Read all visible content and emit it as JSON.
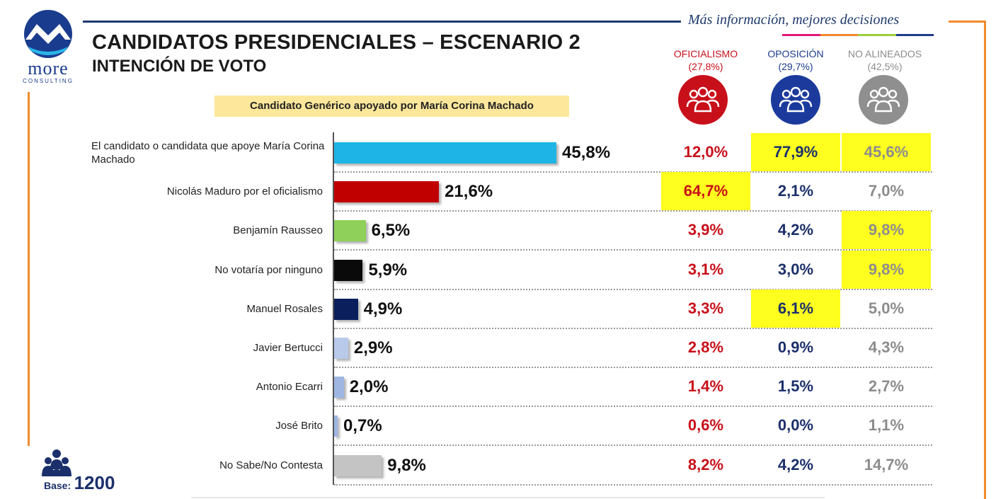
{
  "brand": {
    "name": "more",
    "tagline": "CONSULTING"
  },
  "header": {
    "title": "CANDIDATOS PRESIDENCIALES – ESCENARIO 2",
    "subtitle": "INTENCIÓN DE VOTO",
    "tagline": "Más información, mejores decisiones"
  },
  "generic_note": "Candidato Genérico apoyado por María Corina Machado",
  "groups": [
    {
      "name": "OFICIALISMO",
      "share": "(27,8%)",
      "color": "#c8101a"
    },
    {
      "name": "OPOSICIÓN",
      "share": "(29,7%)",
      "color": "#1b3a8c"
    },
    {
      "name": "NO ALINEADOS",
      "share": "(42,5%)",
      "color": "#8c8c8c"
    }
  ],
  "base": {
    "label": "Base:",
    "value": "1200"
  },
  "chart_data": {
    "type": "bar",
    "orientation": "horizontal",
    "title": "CANDIDATOS PRESIDENCIALES – ESCENARIO 2",
    "subtitle": "INTENCIÓN DE VOTO",
    "xlim": [
      0,
      50
    ],
    "categories": [
      "El candidato o candidata que apoye María Corina Machado",
      "Nicolás Maduro por el oficialismo",
      "Benjamín Rausseo",
      "No votaría por ninguno",
      "Manuel Rosales",
      "Javier Bertucci",
      "Antonio Ecarri",
      "José Brito",
      "No Sabe/No Contesta"
    ],
    "values": [
      45.8,
      21.6,
      6.5,
      5.9,
      4.9,
      2.9,
      2.0,
      0.7,
      9.8
    ],
    "value_labels": [
      "45,8%",
      "21,6%",
      "6,5%",
      "5,9%",
      "4,9%",
      "2,9%",
      "2,0%",
      "0,7%",
      "9,8%"
    ],
    "bar_colors": [
      "#1eb4e6",
      "#c00000",
      "#8ed05a",
      "#0a0a0a",
      "#0b1f5c",
      "#b8c9ea",
      "#9fb6e3",
      "#9fb6e3",
      "#c4c4c4"
    ],
    "breakdown": {
      "columns": [
        "OFICIALISMO",
        "OPOSICIÓN",
        "NO ALINEADOS"
      ],
      "rows": [
        [
          "12,0%",
          "77,9%",
          "45,6%"
        ],
        [
          "64,7%",
          "2,1%",
          "7,0%"
        ],
        [
          "3,9%",
          "4,2%",
          "9,8%"
        ],
        [
          "3,1%",
          "3,0%",
          "9,8%"
        ],
        [
          "3,3%",
          "6,1%",
          "5,0%"
        ],
        [
          "2,8%",
          "0,9%",
          "4,3%"
        ],
        [
          "1,4%",
          "1,5%",
          "2,7%"
        ],
        [
          "0,6%",
          "0,0%",
          "1,1%"
        ],
        [
          "8,2%",
          "4,2%",
          "14,7%"
        ]
      ],
      "highlighted": [
        [
          false,
          true,
          true
        ],
        [
          true,
          false,
          false
        ],
        [
          false,
          false,
          true
        ],
        [
          false,
          false,
          true
        ],
        [
          false,
          true,
          false
        ],
        [
          false,
          false,
          false
        ],
        [
          false,
          false,
          false
        ],
        [
          false,
          false,
          false
        ],
        [
          false,
          false,
          false
        ]
      ]
    }
  }
}
